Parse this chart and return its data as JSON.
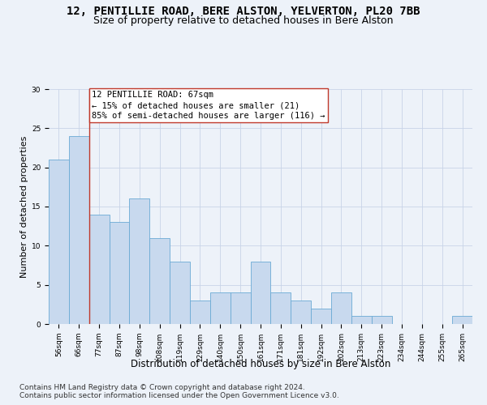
{
  "title1": "12, PENTILLIE ROAD, BERE ALSTON, YELVERTON, PL20 7BB",
  "title2": "Size of property relative to detached houses in Bere Alston",
  "xlabel": "Distribution of detached houses by size in Bere Alston",
  "ylabel": "Number of detached properties",
  "categories": [
    "56sqm",
    "66sqm",
    "77sqm",
    "87sqm",
    "98sqm",
    "108sqm",
    "119sqm",
    "129sqm",
    "140sqm",
    "150sqm",
    "161sqm",
    "171sqm",
    "181sqm",
    "192sqm",
    "202sqm",
    "213sqm",
    "223sqm",
    "234sqm",
    "244sqm",
    "255sqm",
    "265sqm"
  ],
  "values": [
    21,
    24,
    14,
    13,
    16,
    11,
    8,
    3,
    4,
    4,
    8,
    4,
    3,
    2,
    4,
    1,
    1,
    0,
    0,
    0,
    1
  ],
  "bar_color": "#c8d9ee",
  "bar_edge_color": "#6aaad4",
  "marker_line_color": "#c0392b",
  "annotation_text": "12 PENTILLIE ROAD: 67sqm\n← 15% of detached houses are smaller (21)\n85% of semi-detached houses are larger (116) →",
  "annotation_box_color": "#ffffff",
  "annotation_box_edge_color": "#c0392b",
  "ylim": [
    0,
    30
  ],
  "yticks": [
    0,
    5,
    10,
    15,
    20,
    25,
    30
  ],
  "grid_color": "#c8d4e8",
  "background_color": "#edf2f9",
  "footer1": "Contains HM Land Registry data © Crown copyright and database right 2024.",
  "footer2": "Contains public sector information licensed under the Open Government Licence v3.0.",
  "title_fontsize": 10,
  "subtitle_fontsize": 9,
  "xlabel_fontsize": 8.5,
  "ylabel_fontsize": 8,
  "tick_fontsize": 6.5,
  "annotation_fontsize": 7.5,
  "footer_fontsize": 6.5
}
